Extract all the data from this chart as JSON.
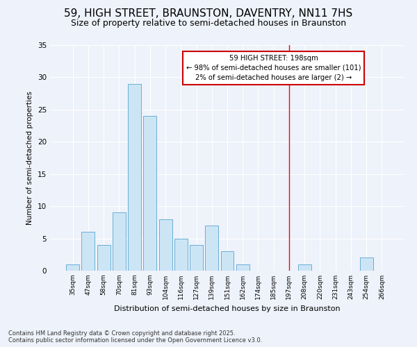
{
  "title": "59, HIGH STREET, BRAUNSTON, DAVENTRY, NN11 7HS",
  "subtitle": "Size of property relative to semi-detached houses in Braunston",
  "xlabel": "Distribution of semi-detached houses by size in Braunston",
  "ylabel": "Number of semi-detached properties",
  "categories": [
    "35sqm",
    "47sqm",
    "58sqm",
    "70sqm",
    "81sqm",
    "93sqm",
    "104sqm",
    "116sqm",
    "127sqm",
    "139sqm",
    "151sqm",
    "162sqm",
    "174sqm",
    "185sqm",
    "197sqm",
    "208sqm",
    "220sqm",
    "231sqm",
    "243sqm",
    "254sqm",
    "266sqm"
  ],
  "values": [
    1,
    6,
    4,
    9,
    29,
    24,
    8,
    5,
    4,
    7,
    3,
    1,
    0,
    0,
    0,
    1,
    0,
    0,
    0,
    2,
    0
  ],
  "bar_color": "#cce5f5",
  "bar_edge_color": "#6aaed6",
  "red_line_index": 14,
  "annotation_title": "59 HIGH STREET: 198sqm",
  "annotation_line1": "← 98% of semi-detached houses are smaller (101)",
  "annotation_line2": "2% of semi-detached houses are larger (2) →",
  "ylim": [
    0,
    35
  ],
  "yticks": [
    0,
    5,
    10,
    15,
    20,
    25,
    30,
    35
  ],
  "background_color": "#eef2fa",
  "plot_bg_color": "#eef2fa",
  "footer_line1": "Contains HM Land Registry data © Crown copyright and database right 2025.",
  "footer_line2": "Contains public sector information licensed under the Open Government Licence v3.0.",
  "title_fontsize": 11,
  "subtitle_fontsize": 9,
  "annotation_box_color": "#ffffff",
  "annotation_box_edge": "#cc0000",
  "grid_color": "#ffffff"
}
